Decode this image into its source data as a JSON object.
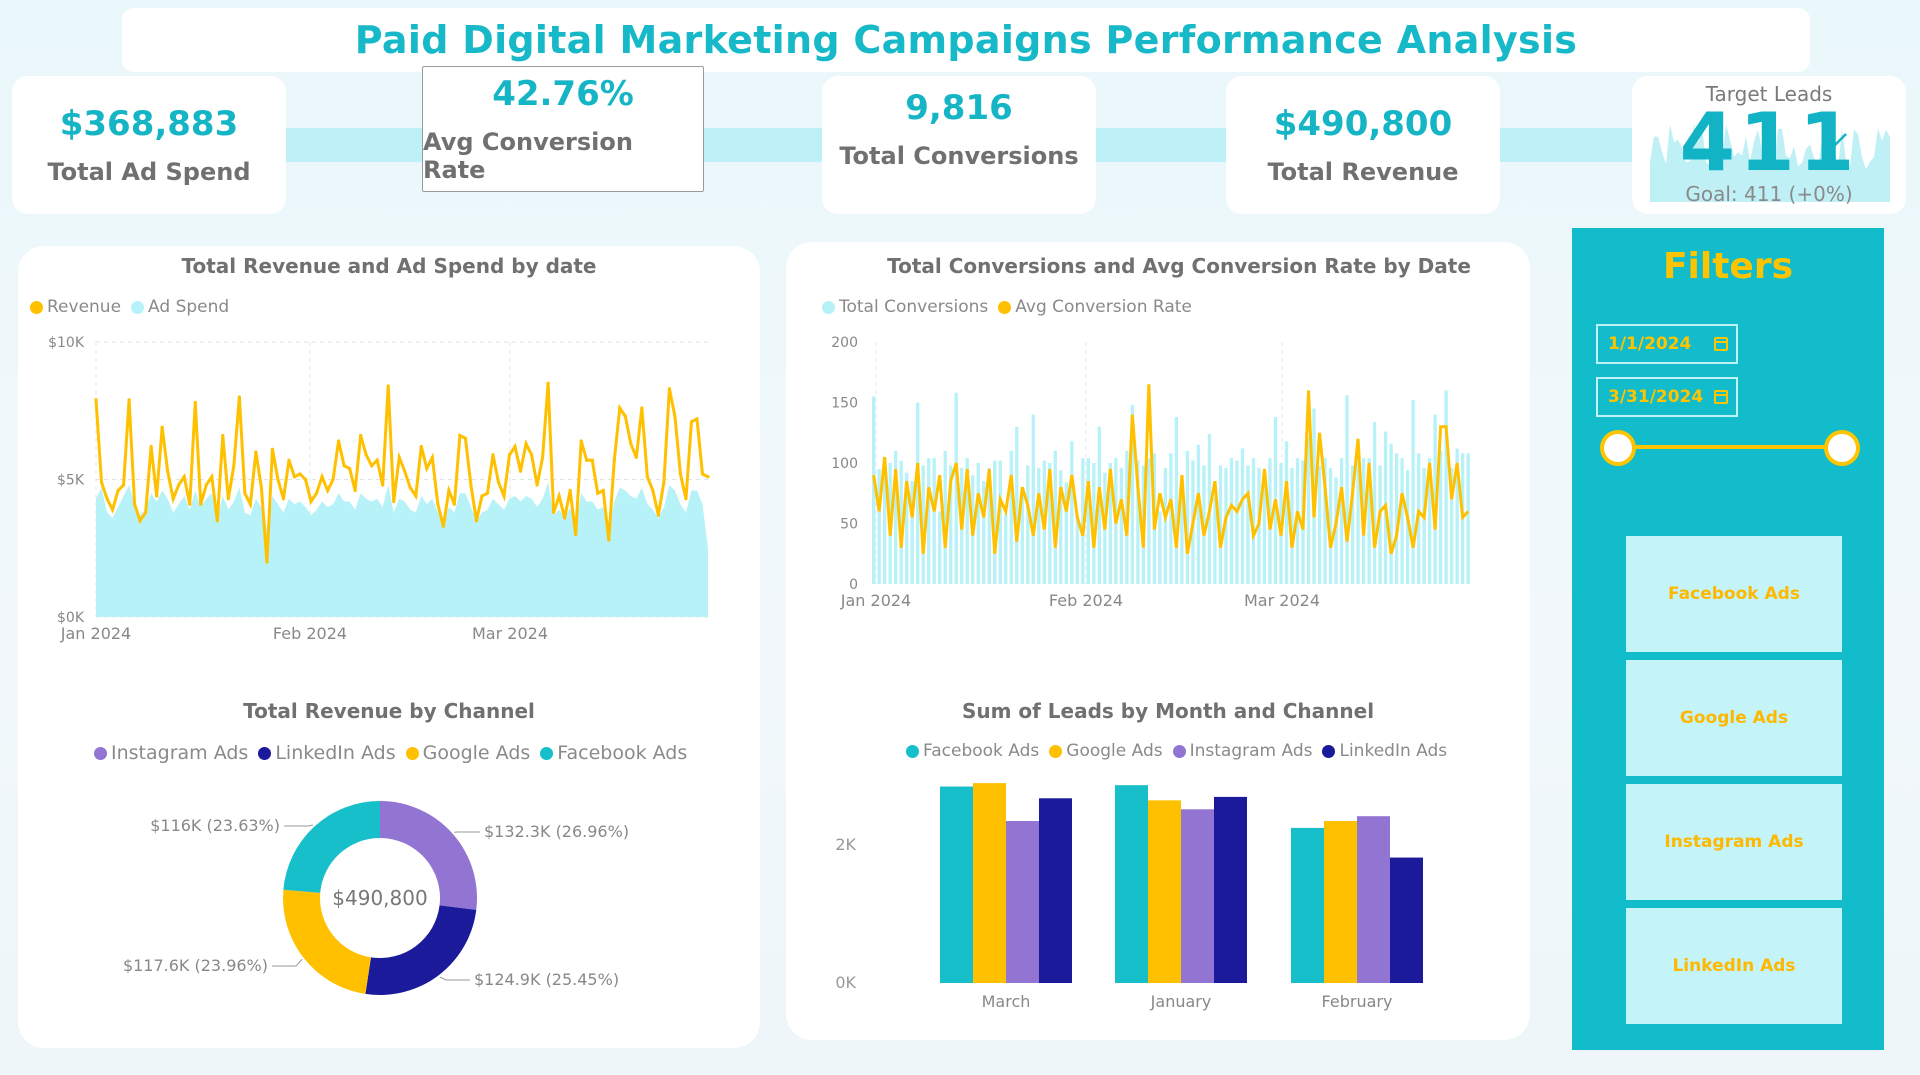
{
  "title": "Paid Digital Marketing Campaigns Performance Analysis",
  "kpis": [
    {
      "value": "$368,883",
      "label": "Total Ad Spend"
    },
    {
      "value": "42.76%",
      "label": "Avg Conversion Rate"
    },
    {
      "value": "9,816",
      "label": "Total Conversions"
    },
    {
      "value": "$490,800",
      "label": "Total Revenue"
    }
  ],
  "target": {
    "title": "Target Leads",
    "value": "411",
    "goal": "Goal: 411 (+0%)"
  },
  "filters": {
    "title": "Filters",
    "start_date": "1/1/2024",
    "end_date": "3/31/2024",
    "channels": [
      "Facebook Ads",
      "Google Ads",
      "Instagram Ads",
      "LinkedIn Ads"
    ]
  },
  "colors": {
    "cyan": "#12bccb",
    "lightcyan": "#b7f2f8",
    "yellow": "#ffc000",
    "purple": "#9275d3",
    "navy": "#1a1a9a",
    "teal": "#17bfca"
  },
  "chart_data": [
    {
      "type": "area",
      "title": "Total Revenue and Ad Spend by date",
      "legend": [
        "Revenue",
        "Ad Spend"
      ],
      "y_ticks": [
        "$10K",
        "$5K",
        "$0K"
      ],
      "x_ticks": [
        "Jan 2024",
        "Feb 2024",
        "Mar 2024"
      ],
      "ylim": [
        0,
        10000
      ],
      "series": [
        {
          "name": "Revenue",
          "values": [
            7900,
            4900,
            4300,
            3900,
            4600,
            4800,
            7900,
            4100,
            3500,
            3800,
            6200,
            4400,
            6900,
            5300,
            4300,
            4800,
            5100,
            4100,
            7800,
            4100,
            4800,
            5100,
            3500,
            6600,
            4300,
            5500,
            8000,
            4500,
            4100,
            6000,
            4700,
            2000,
            6100,
            5000,
            4300,
            5700,
            5100,
            5200,
            5000,
            4200,
            4500,
            5100,
            4600,
            5000,
            6400,
            5500,
            5400,
            4600,
            6600,
            5900,
            5500,
            5700,
            4800,
            8400,
            4200,
            5800,
            5300,
            4700,
            4400,
            6200,
            5400,
            5800,
            4100,
            3300,
            4600,
            4100,
            6600,
            6500,
            4800,
            3500,
            4400,
            4500,
            5900,
            4900,
            4400,
            5900,
            6200,
            5300,
            6300,
            5900,
            4800,
            5800,
            8500,
            3800,
            4400,
            3600,
            4600,
            3000,
            6400,
            5700,
            5700,
            4500,
            4600,
            2800,
            5700,
            7600,
            7300,
            6300,
            5800,
            7600,
            5100,
            4600,
            3700,
            4900,
            8300,
            7300,
            5200,
            4300,
            7100,
            7200,
            5200,
            5100
          ]
        },
        {
          "name": "Ad Spend",
          "values": [
            4300,
            4700,
            3800,
            3600,
            4000,
            4400,
            4800,
            4100,
            3700,
            3900,
            4500,
            4200,
            4600,
            4300,
            3800,
            4100,
            4400,
            3900,
            4600,
            4000,
            4300,
            4500,
            3600,
            4400,
            3900,
            4200,
            4700,
            3800,
            3700,
            4300,
            4000,
            3200,
            4400,
            4100,
            3800,
            4300,
            4100,
            4200,
            4000,
            3700,
            3900,
            4200,
            4000,
            4100,
            4500,
            4200,
            4200,
            3900,
            4500,
            4300,
            4200,
            4300,
            4000,
            4800,
            3800,
            4300,
            4200,
            3900,
            3800,
            4400,
            4100,
            4300,
            3800,
            3400,
            4000,
            3800,
            4500,
            4500,
            4000,
            3500,
            3800,
            3900,
            4300,
            4100,
            3900,
            4300,
            4400,
            4200,
            4400,
            4300,
            4000,
            4300,
            4900,
            3700,
            3900,
            3600,
            4000,
            3300,
            4500,
            4200,
            4200,
            3900,
            4000,
            3200,
            4200,
            4700,
            4600,
            4400,
            4300,
            4700,
            4100,
            3900,
            3600,
            4000,
            4800,
            4600,
            4100,
            3800,
            4600,
            4600,
            4100,
            2500
          ]
        }
      ]
    },
    {
      "type": "bar+line",
      "title": "Total Conversions and Avg Conversion Rate by Date",
      "legend": [
        "Total Conversions",
        "Avg Conversion Rate"
      ],
      "y_ticks": [
        "200",
        "150",
        "100",
        "50",
        "0"
      ],
      "x_ticks": [
        "Jan 2024",
        "Feb 2024",
        "Mar 2024"
      ],
      "ylim": [
        0,
        200
      ],
      "series": [
        {
          "name": "Total Conversions",
          "values": [
            155,
            95,
            90,
            100,
            110,
            102,
            92,
            85,
            150,
            98,
            104,
            104,
            60,
            110,
            98,
            158,
            96,
            104,
            90,
            100,
            85,
            96,
            102,
            102,
            58,
            110,
            130,
            75,
            98,
            140,
            96,
            102,
            100,
            110,
            94,
            84,
            118,
            56,
            104,
            104,
            100,
            130,
            92,
            100,
            104,
            96,
            110,
            148,
            102,
            98,
            104,
            108,
            60,
            96,
            108,
            138,
            90,
            110,
            102,
            115,
            98,
            124,
            72,
            98,
            96,
            104,
            102,
            112,
            98,
            104,
            96,
            82,
            104,
            138,
            100,
            118,
            96,
            104,
            102,
            122,
            145,
            98,
            104,
            96,
            88,
            104,
            156,
            98,
            112,
            104,
            104,
            134,
            98,
            126,
            116,
            108,
            104,
            94,
            152,
            108,
            96,
            104,
            140,
            110,
            160,
            96,
            112,
            108,
            108
          ]
        },
        {
          "name": "Avg Conversion Rate",
          "values": [
            90,
            60,
            105,
            40,
            95,
            30,
            85,
            55,
            100,
            25,
            80,
            60,
            90,
            30,
            85,
            100,
            45,
            95,
            40,
            75,
            55,
            95,
            25,
            70,
            60,
            90,
            35,
            80,
            65,
            40,
            75,
            45,
            95,
            30,
            80,
            60,
            90,
            55,
            40,
            85,
            30,
            80,
            45,
            95,
            50,
            70,
            40,
            140,
            80,
            30,
            165,
            45,
            75,
            55,
            70,
            30,
            90,
            25,
            50,
            75,
            40,
            60,
            85,
            30,
            55,
            65,
            60,
            70,
            75,
            40,
            50,
            95,
            45,
            70,
            40,
            85,
            30,
            60,
            45,
            160,
            55,
            125,
            80,
            30,
            50,
            80,
            35,
            75,
            120,
            40,
            100,
            30,
            60,
            65,
            25,
            40,
            75,
            55,
            30,
            60,
            55,
            100,
            45,
            130,
            130,
            70,
            100,
            55,
            60
          ]
        }
      ]
    },
    {
      "type": "pie",
      "title": "Total Revenue by Channel",
      "center_label": "$490,800",
      "legend": [
        "Instagram Ads",
        "LinkedIn Ads",
        "Google Ads",
        "Facebook Ads"
      ],
      "slices": [
        {
          "name": "Instagram Ads",
          "value": 132.3,
          "label": "$132.3K (26.96%)"
        },
        {
          "name": "LinkedIn Ads",
          "value": 124.9,
          "label": "$124.9K (25.45%)"
        },
        {
          "name": "Google Ads",
          "value": 117.6,
          "label": "$117.6K (23.96%)"
        },
        {
          "name": "Facebook Ads",
          "value": 116.0,
          "label": "$116K (23.63%)"
        }
      ]
    },
    {
      "type": "bar",
      "title": "Sum of Leads by Month and Channel",
      "legend": [
        "Facebook Ads",
        "Google Ads",
        "Instagram Ads",
        "LinkedIn Ads"
      ],
      "categories": [
        "March",
        "January",
        "February"
      ],
      "y_ticks": [
        "2K",
        "0K"
      ],
      "ylim": [
        0,
        2800
      ],
      "series": [
        {
          "name": "Facebook Ads",
          "values": [
            2850,
            2870,
            2250
          ]
        },
        {
          "name": "Google Ads",
          "values": [
            2900,
            2650,
            2350
          ]
        },
        {
          "name": "Instagram Ads",
          "values": [
            2350,
            2520,
            2420
          ]
        },
        {
          "name": "LinkedIn Ads",
          "values": [
            2680,
            2700,
            1820
          ]
        }
      ]
    }
  ]
}
